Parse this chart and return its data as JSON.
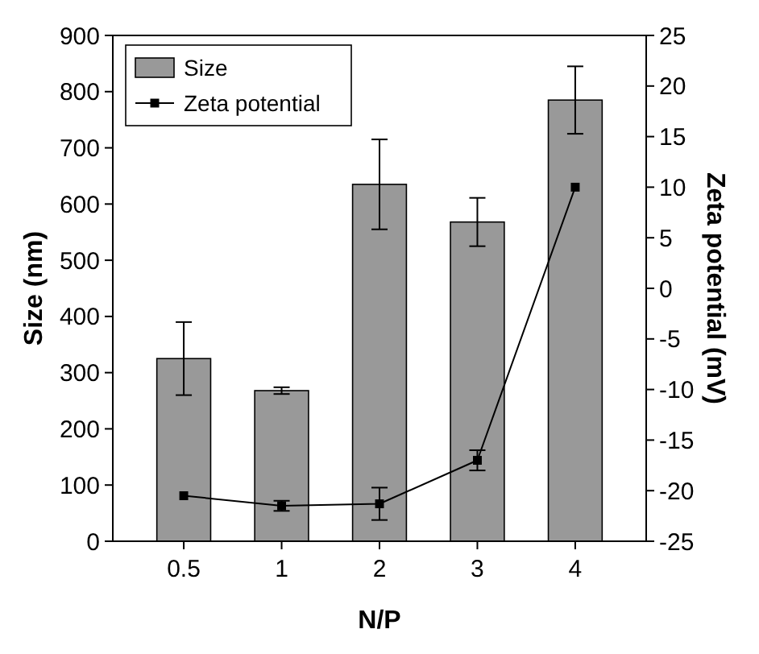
{
  "chart_data": {
    "type": "bar",
    "xlabel": "N/P",
    "ylabel": "Size (nm)",
    "y2label": "Zeta potential (mV)",
    "categories": [
      "0.5",
      "1",
      "2",
      "3",
      "4"
    ],
    "series": [
      {
        "name": "Size",
        "color": "#999999",
        "values": [
          325,
          268,
          635,
          568,
          785
        ],
        "errors": [
          65,
          6,
          80,
          43,
          60
        ]
      },
      {
        "name": "Zeta potential",
        "type": "line",
        "axis": "y2",
        "color": "#000000",
        "marker": "square",
        "values": [
          -20.5,
          -21.5,
          -21.3,
          -17,
          10
        ],
        "errors": [
          null,
          0.5,
          1.6,
          1,
          null
        ]
      }
    ],
    "ylim": [
      0,
      900
    ],
    "yticks": [
      0,
      100,
      200,
      300,
      400,
      500,
      600,
      700,
      800,
      900
    ],
    "y2lim": [
      -25,
      25
    ],
    "y2ticks": [
      -25,
      -20,
      -15,
      -10,
      -5,
      0,
      5,
      10,
      15,
      20,
      25
    ],
    "legend": "top left"
  }
}
